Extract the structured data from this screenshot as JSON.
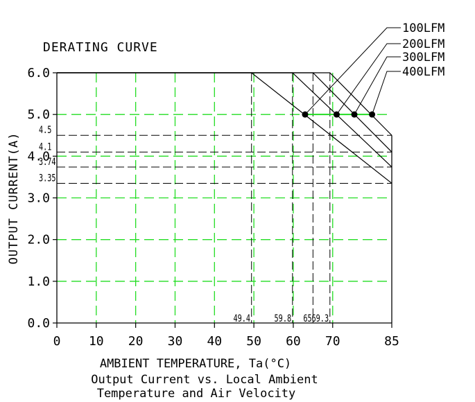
{
  "chart_data": {
    "type": "line",
    "title": "DERATING CURVE",
    "xlabel": "AMBIENT TEMPERATURE, Ta(°C)",
    "ylabel": "OUTPUT CURRENT(A)",
    "caption": [
      "Output Current vs. Local Ambient",
      "Temperature and Air Velocity"
    ],
    "xlim": [
      0,
      85
    ],
    "ylim": [
      0,
      6
    ],
    "x_ticks": [
      0,
      10,
      20,
      30,
      40,
      50,
      60,
      70,
      85
    ],
    "y_ticks": [
      "0.0",
      "1.0",
      "2.0",
      "3.0",
      "4.0",
      "5.0",
      "6.0"
    ],
    "grid": true,
    "x_annotations": [
      {
        "value": 49.4,
        "label": "49.4"
      },
      {
        "value": 59.8,
        "label": "59.8"
      },
      {
        "value": 65,
        "label": "65"
      },
      {
        "value": 69.3,
        "label": "69.3"
      }
    ],
    "y_annotations": [
      {
        "value": 4.5,
        "label": "4.5"
      },
      {
        "value": 4.1,
        "label": "4.1"
      },
      {
        "value": 3.74,
        "label": "3.74"
      },
      {
        "value": 3.35,
        "label": "3.35"
      }
    ],
    "series": [
      {
        "name": "100LFM",
        "x": [
          0,
          49.4,
          85
        ],
        "y": [
          6.0,
          6.0,
          3.35
        ]
      },
      {
        "name": "200LFM",
        "x": [
          0,
          59.8,
          85
        ],
        "y": [
          6.0,
          6.0,
          3.74
        ]
      },
      {
        "name": "300LFM",
        "x": [
          0,
          65,
          85
        ],
        "y": [
          6.0,
          6.0,
          4.1
        ]
      },
      {
        "name": "400LFM",
        "x": [
          0,
          69.3,
          85
        ],
        "y": [
          6.0,
          6.0,
          4.5
        ]
      }
    ],
    "markers": [
      {
        "series": "100LFM",
        "x": 63,
        "y": 5.0
      },
      {
        "series": "200LFM",
        "x": 71,
        "y": 5.0
      },
      {
        "series": "300LFM",
        "x": 75.5,
        "y": 5.0
      },
      {
        "series": "400LFM",
        "x": 80,
        "y": 5.0
      }
    ],
    "legend_placement": "top-right"
  }
}
